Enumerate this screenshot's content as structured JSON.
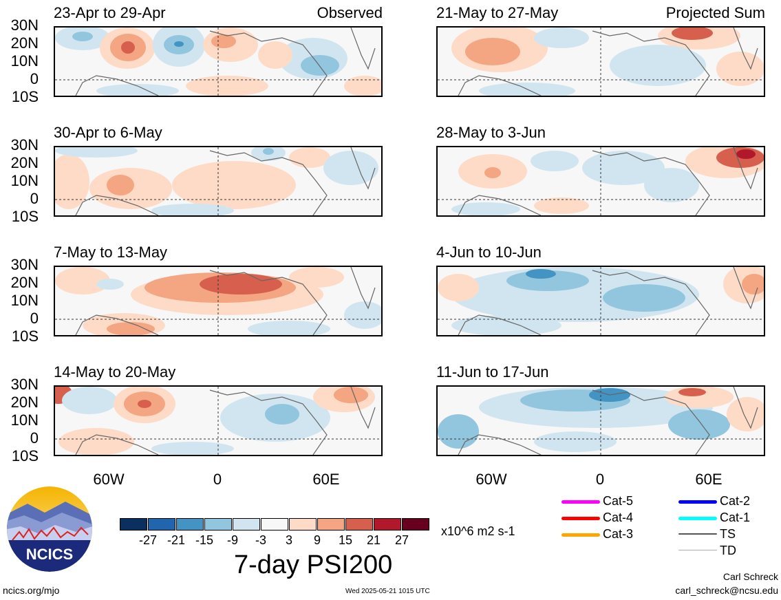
{
  "header": {
    "left_label": "Observed",
    "right_label": "Projected Sum"
  },
  "lat_labels": [
    "30N",
    "20N",
    "10N",
    "0",
    "10S"
  ],
  "lon_labels": [
    "60W",
    "0",
    "60E"
  ],
  "panels_left": [
    {
      "title": "23-Apr to 29-Apr"
    },
    {
      "title": "30-Apr to 6-May"
    },
    {
      "title": "7-May to 13-May"
    },
    {
      "title": "14-May to 20-May"
    }
  ],
  "panels_right": [
    {
      "title": "21-May to 27-May"
    },
    {
      "title": "28-May to 3-Jun"
    },
    {
      "title": "4-Jun to 10-Jun"
    },
    {
      "title": "11-Jun to 17-Jun"
    }
  ],
  "colorbar": {
    "ticks": [
      "-27",
      "-21",
      "-15",
      "-9",
      "-3",
      "3",
      "9",
      "15",
      "21",
      "27"
    ],
    "colors": [
      "#0b2f5e",
      "#2166ac",
      "#4393c3",
      "#92c5de",
      "#d1e5f0",
      "#f7f7f7",
      "#fddbc7",
      "#f4a582",
      "#d6604d",
      "#b2182b",
      "#67001f"
    ],
    "units": "x10^6 m2 s-1"
  },
  "main_title": "7-day PSI200",
  "legend": [
    {
      "label": "Cat-5",
      "color": "#ff00ff"
    },
    {
      "label": "Cat-4",
      "color": "#ff0000"
    },
    {
      "label": "Cat-3",
      "color": "#ffa500"
    },
    {
      "label": "Cat-2",
      "color": "#0000ff"
    },
    {
      "label": "Cat-1",
      "color": "#00ffff"
    },
    {
      "label": "TS",
      "color": "#555555"
    },
    {
      "label": "TD",
      "color": "#aaaaaa"
    }
  ],
  "logo_text": "NCICS",
  "footer": {
    "left": "ncics.org/mjo",
    "center": "Wed 2025-05-21 1015 UTC",
    "author": "Carl Schreck",
    "email": "carl_schreck@ncsu.edu"
  }
}
